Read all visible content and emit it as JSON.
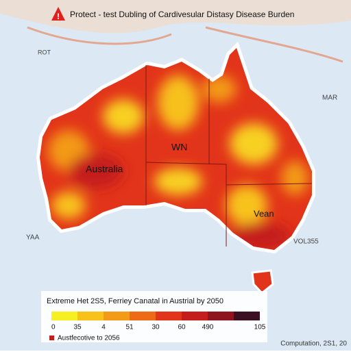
{
  "header": {
    "title": "Protect - test Dubling of Cardivesular Distasy Disease Burden"
  },
  "map_labels": {
    "country": "Australia",
    "region_north": "WN",
    "region_southeast": "Vean",
    "top_left": "ROT",
    "right": "MAR",
    "left": "YAA",
    "bottom_right": "VOL355"
  },
  "legend": {
    "title": "Extreme Het 2S5, Ferriey Canatal in Austrial by 2050",
    "bins": [
      {
        "color": "#f7f020",
        "label": "0"
      },
      {
        "color": "#f8c21a",
        "label": "35"
      },
      {
        "color": "#f39a18",
        "label": "4"
      },
      {
        "color": "#ef6a17",
        "label": "51"
      },
      {
        "color": "#e2341a",
        "label": "30"
      },
      {
        "color": "#c41e1c",
        "label": "60"
      },
      {
        "color": "#8e1420",
        "label": "490"
      },
      {
        "color": "#3a1022",
        "label": "105"
      }
    ],
    "note": "Austfecotive to 2056"
  },
  "footer": {
    "source": "Computation, 2S1, 20"
  }
}
